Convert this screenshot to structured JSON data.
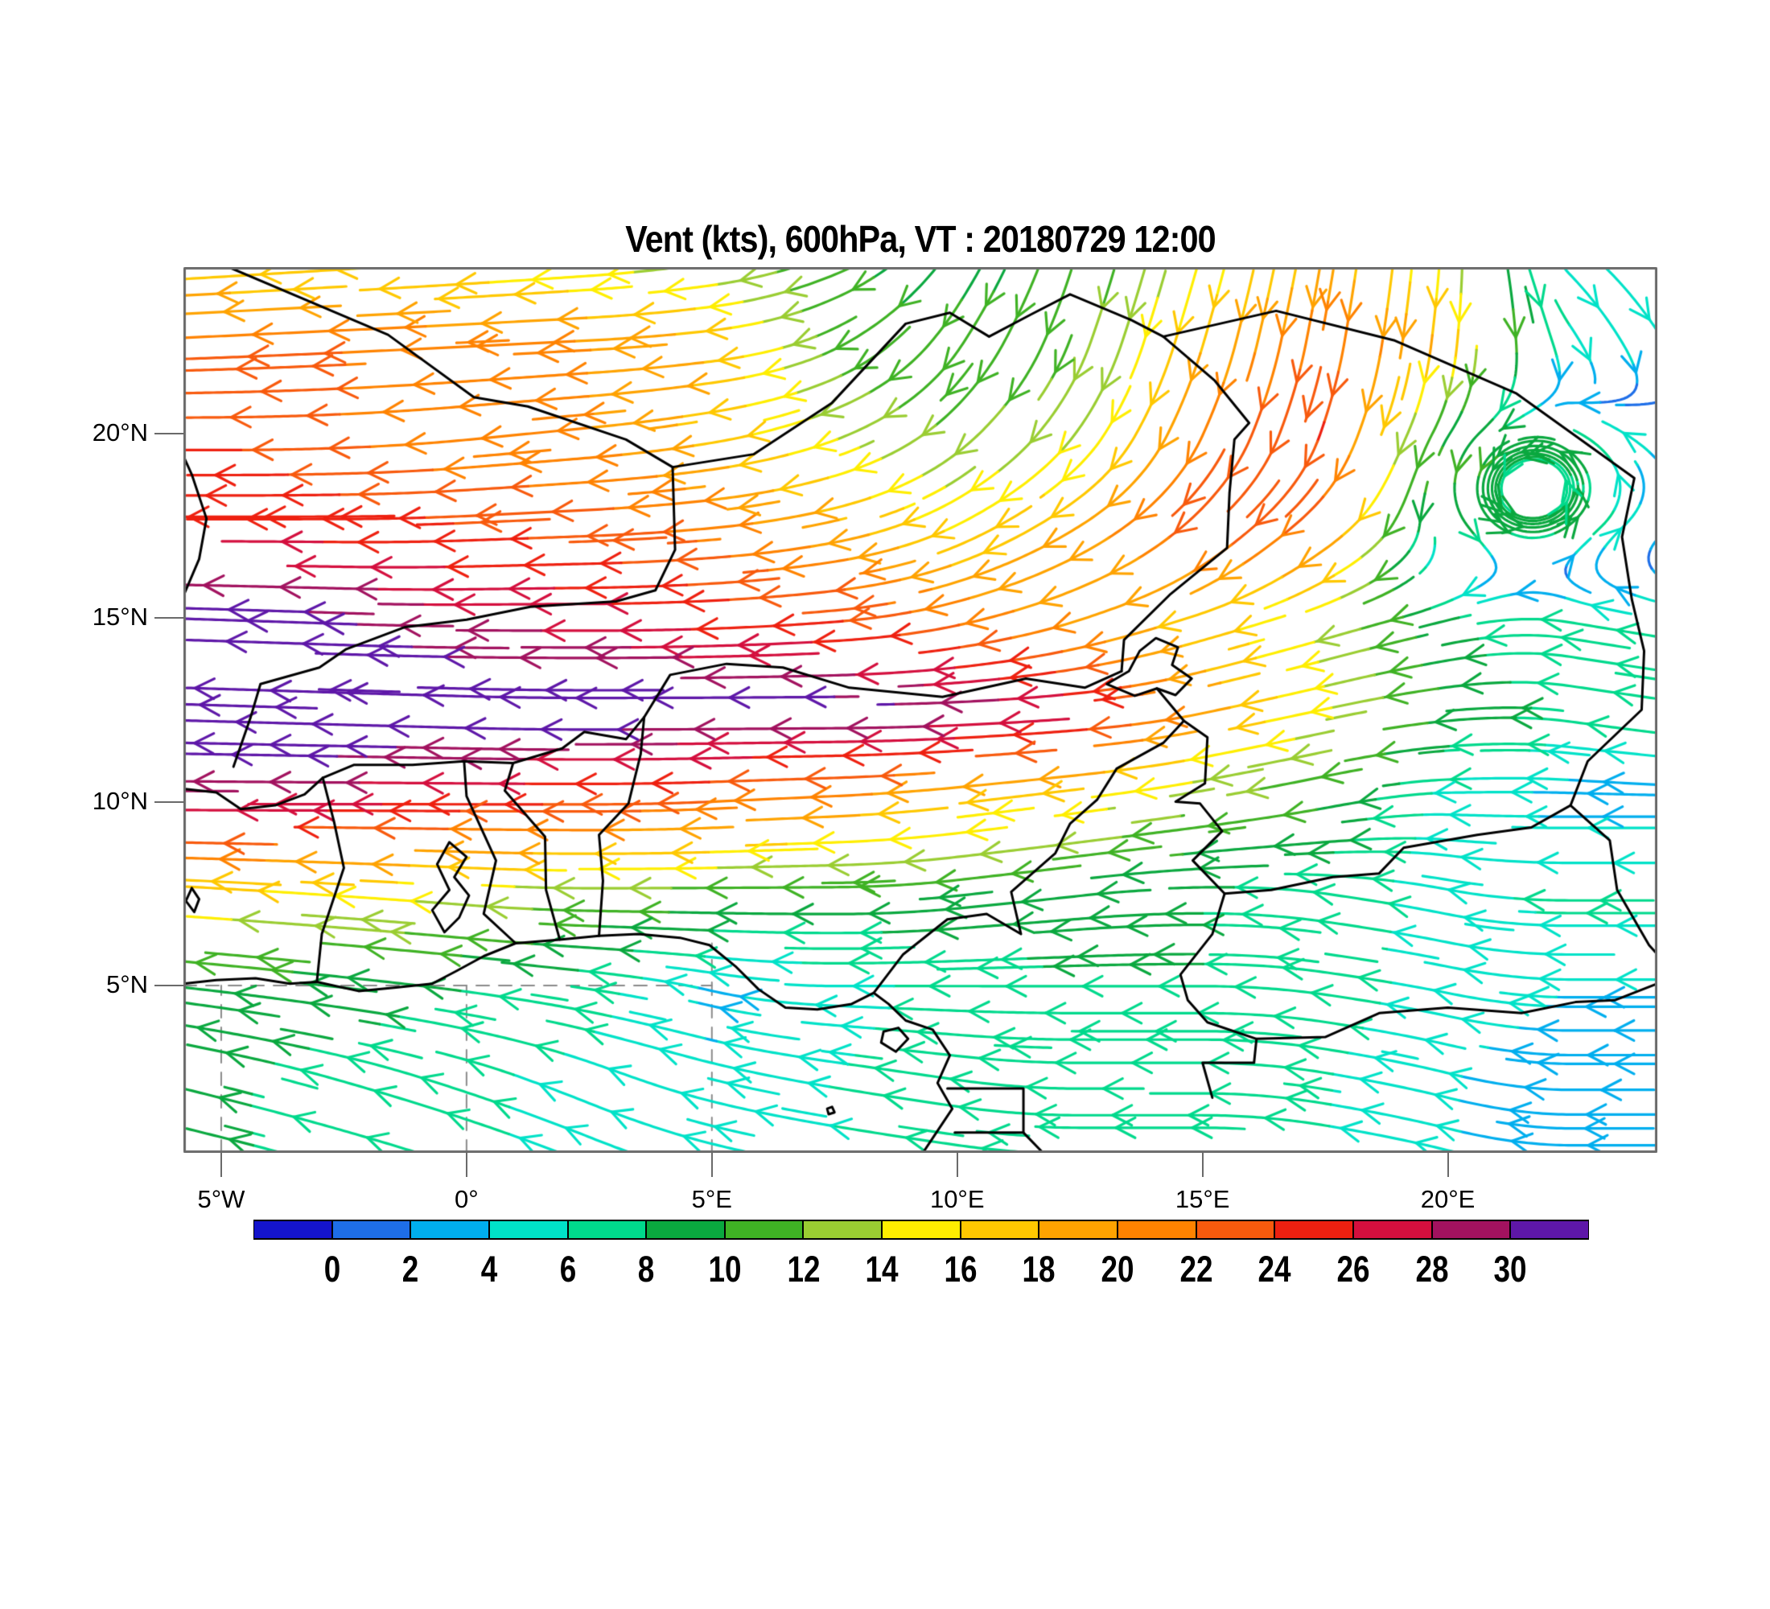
{
  "title": "Vent (kts), 600hPa, VT : 20180729  12:00",
  "map": {
    "lat_ticks": [
      {
        "label": "5°N",
        "lat": 5
      },
      {
        "label": "10°N",
        "lat": 10
      },
      {
        "label": "15°N",
        "lat": 15
      },
      {
        "label": "20°N",
        "lat": 20
      }
    ],
    "lon_ticks": [
      {
        "label": "5°W",
        "lon": -5
      },
      {
        "label": "0°",
        "lon": 0
      },
      {
        "label": "5°E",
        "lon": 5
      },
      {
        "label": "10°E",
        "lon": 10
      },
      {
        "label": "15°E",
        "lon": 15
      },
      {
        "label": "20°E",
        "lon": 20
      }
    ]
  },
  "colorbar": {
    "tick_labels": [
      "0",
      "2",
      "4",
      "6",
      "8",
      "10",
      "12",
      "14",
      "16",
      "18",
      "20",
      "22",
      "24",
      "26",
      "28",
      "30"
    ],
    "levels": [
      0,
      2,
      4,
      6,
      8,
      10,
      12,
      14,
      16,
      18,
      20,
      22,
      24,
      26,
      28,
      30
    ],
    "colors": [
      "#1414CC",
      "#1E6EE8",
      "#00AEEE",
      "#00E2C8",
      "#00D98C",
      "#0AA83F",
      "#3FB224",
      "#9ACD32",
      "#FFEE00",
      "#FFC800",
      "#FFA300",
      "#FF8300",
      "#F85A0D",
      "#EE2010",
      "#D40F3E",
      "#A2125F",
      "#5E17A8"
    ]
  },
  "chart_data": {
    "type": "streamline",
    "title": "Vent (kts), 600hPa, VT : 20180729  12:00",
    "variable": "wind",
    "units": "kts",
    "pressure_level": "600hPa",
    "valid_time": "20180729 12:00",
    "domain": {
      "lon_min": -5.77,
      "lon_max": 24.27,
      "lat_min": 0.45,
      "lat_max": 24.54
    },
    "grid": {
      "lons": [
        -5,
        -2.5,
        0,
        2.5,
        5,
        7.5,
        10,
        12.5,
        15,
        17.5,
        20,
        22.5
      ],
      "lats": [
        2.5,
        5,
        7.5,
        10,
        12.5,
        15,
        17.5,
        20,
        22.5,
        24.5
      ],
      "u": [
        [
          -8,
          -7,
          -6,
          -5,
          -4,
          -6,
          -7,
          -7,
          -6,
          -6,
          -4,
          -3
        ],
        [
          -9,
          -9,
          -8,
          -7,
          -3.5,
          -5,
          -7,
          -8,
          -8,
          -7,
          -5,
          -4
        ],
        [
          -16,
          -15,
          -14,
          -12,
          -11,
          -10,
          -9,
          -9,
          -8,
          -7,
          -5,
          -7
        ],
        [
          -28,
          -27,
          -25,
          -24,
          -22,
          -20,
          -17,
          -15,
          -12,
          -10,
          -5,
          -3
        ],
        [
          -33,
          -33,
          -32,
          -32,
          -31,
          -31,
          -30,
          -27,
          -19,
          -14,
          -10,
          -7
        ],
        [
          -31,
          -30,
          -28,
          -27,
          -25,
          -24,
          -21,
          -18,
          -16,
          -13,
          -8,
          -6
        ],
        [
          -26,
          -25,
          -24,
          -23,
          -21,
          -18,
          -14,
          -16,
          -18,
          -17,
          3,
          3
        ],
        [
          -24,
          -22,
          -20,
          -20,
          -17,
          -13,
          -9,
          -8,
          -9,
          -8,
          -4,
          -4
        ],
        [
          -22,
          -22,
          -21,
          -20,
          -18,
          -10,
          -6,
          -4,
          -5,
          -4,
          -2,
          3
        ],
        [
          -16,
          -16,
          -15,
          -14,
          -13,
          -10,
          -5,
          -3,
          -4,
          -3,
          -1,
          4
        ]
      ],
      "v": [
        [
          2,
          2,
          2,
          2,
          1,
          1,
          1,
          0,
          0,
          1,
          1,
          0
        ],
        [
          1,
          1,
          1,
          1,
          0.8,
          0,
          0,
          0,
          0,
          1,
          1,
          0
        ],
        [
          1,
          1,
          1,
          0,
          0,
          0,
          -1,
          -1,
          0,
          1,
          1,
          0
        ],
        [
          0,
          0,
          0,
          0,
          -1,
          -1,
          -2,
          -2,
          -2,
          -2,
          0,
          0
        ],
        [
          1,
          1,
          1,
          0,
          0,
          0,
          -1,
          -2,
          -4,
          -3,
          -1,
          1
        ],
        [
          1,
          1,
          0,
          0,
          -1,
          -2,
          -5,
          -6,
          -5,
          -4,
          -2,
          1
        ],
        [
          0,
          0,
          -1,
          -1,
          -2,
          -4,
          -7,
          -10,
          -16,
          -14,
          -5,
          2
        ],
        [
          0,
          -1,
          -2,
          -2,
          -3,
          -5,
          -8,
          -11,
          -20,
          -23,
          -7,
          2
        ],
        [
          -1,
          -1,
          -1,
          -1,
          -2,
          -5,
          -9,
          -11,
          -17,
          -22,
          -18,
          -5
        ],
        [
          -1,
          -1,
          -1,
          -1,
          -2,
          -4,
          -8,
          -10,
          -14,
          -18,
          -14,
          -4
        ]
      ]
    },
    "vortices": [
      {
        "lon": 21.7,
        "lat": 18.5,
        "strength": 14,
        "radius": 1.4,
        "sense": "cyclonic"
      }
    ],
    "graticule": [
      [
        [
          -5.77,
          5
        ],
        [
          5.0,
          5
        ]
      ],
      [
        [
          -5,
          0.45
        ],
        [
          -5,
          5
        ]
      ],
      [
        [
          0,
          0.45
        ],
        [
          0,
          5
        ]
      ],
      [
        [
          5,
          0.45
        ],
        [
          5,
          6.15
        ]
      ]
    ],
    "borders": [
      [
        [
          -5.77,
          5.05
        ],
        [
          -5.1,
          5.15
        ],
        [
          -4.3,
          5.2
        ],
        [
          -3.6,
          5.05
        ],
        [
          -3.05,
          5.1
        ],
        [
          -2.2,
          4.85
        ],
        [
          -1.4,
          4.95
        ],
        [
          -0.7,
          5.05
        ],
        [
          -0.2,
          5.4
        ],
        [
          0.35,
          5.8
        ],
        [
          1.0,
          6.15
        ],
        [
          1.9,
          6.25
        ],
        [
          2.7,
          6.35
        ],
        [
          3.5,
          6.4
        ],
        [
          4.35,
          6.3
        ],
        [
          4.95,
          6.1
        ],
        [
          5.5,
          5.5
        ],
        [
          5.95,
          4.9
        ],
        [
          6.5,
          4.4
        ],
        [
          7.15,
          4.35
        ],
        [
          7.85,
          4.5
        ],
        [
          8.3,
          4.8
        ],
        [
          8.6,
          4.5
        ],
        [
          8.95,
          4.05
        ],
        [
          9.5,
          3.8
        ],
        [
          9.85,
          3.1
        ],
        [
          9.6,
          2.35
        ],
        [
          9.9,
          1.65
        ],
        [
          9.55,
          0.95
        ],
        [
          9.3,
          0.45
        ]
      ],
      [
        [
          8.5,
          3.75
        ],
        [
          8.8,
          3.85
        ],
        [
          9.0,
          3.55
        ],
        [
          8.75,
          3.2
        ],
        [
          8.45,
          3.45
        ],
        [
          8.5,
          3.75
        ]
      ],
      [
        [
          7.35,
          1.65
        ],
        [
          7.45,
          1.7
        ],
        [
          7.5,
          1.55
        ],
        [
          7.38,
          1.5
        ],
        [
          7.35,
          1.65
        ]
      ],
      [
        [
          -3.05,
          5.1
        ],
        [
          -2.95,
          6.4
        ],
        [
          -2.5,
          8.2
        ],
        [
          -2.7,
          9.45
        ],
        [
          -2.93,
          10.65
        ]
      ],
      [
        [
          1.0,
          6.15
        ],
        [
          0.35,
          6.95
        ],
        [
          0.6,
          8.4
        ],
        [
          0.0,
          10.15
        ],
        [
          -0.05,
          11.1
        ]
      ],
      [
        [
          1.9,
          6.25
        ],
        [
          1.62,
          7.6
        ],
        [
          1.6,
          9.05
        ],
        [
          0.78,
          10.3
        ],
        [
          0.95,
          11.05
        ]
      ],
      [
        [
          2.7,
          6.35
        ],
        [
          2.78,
          7.85
        ],
        [
          2.7,
          9.1
        ],
        [
          3.3,
          9.95
        ],
        [
          3.55,
          11.3
        ],
        [
          3.62,
          12.3
        ]
      ],
      [
        [
          -5.77,
          10.35
        ],
        [
          -5.1,
          10.25
        ],
        [
          -4.6,
          9.8
        ],
        [
          -3.9,
          9.9
        ],
        [
          -3.3,
          10.2
        ],
        [
          -2.93,
          10.65
        ],
        [
          -2.3,
          11.0
        ],
        [
          -1.1,
          11.0
        ],
        [
          -0.05,
          11.1
        ],
        [
          0.95,
          11.05
        ],
        [
          1.95,
          11.45
        ],
        [
          2.4,
          11.9
        ],
        [
          3.25,
          11.7
        ],
        [
          3.62,
          12.3
        ],
        [
          4.15,
          13.45
        ],
        [
          5.3,
          13.75
        ],
        [
          6.45,
          13.65
        ],
        [
          7.8,
          13.1
        ],
        [
          9.7,
          12.85
        ],
        [
          11.4,
          13.35
        ],
        [
          12.6,
          13.1
        ],
        [
          13.35,
          13.55
        ]
      ],
      [
        [
          -5.77,
          15.6
        ],
        [
          -5.45,
          16.6
        ],
        [
          -5.3,
          17.7
        ],
        [
          -5.6,
          18.9
        ],
        [
          -5.77,
          19.4
        ]
      ],
      [
        [
          -4.75,
          10.95
        ],
        [
          -4.4,
          12.3
        ],
        [
          -4.2,
          13.2
        ],
        [
          -3.0,
          13.65
        ],
        [
          -2.45,
          14.15
        ],
        [
          -1.25,
          14.75
        ],
        [
          0.0,
          14.95
        ],
        [
          1.3,
          15.3
        ],
        [
          3.05,
          15.45
        ],
        [
          3.85,
          15.75
        ],
        [
          4.25,
          16.85
        ],
        [
          4.2,
          19.1
        ]
      ],
      [
        [
          -4.85,
          24.54
        ],
        [
          -1.6,
          22.7
        ],
        [
          0.15,
          21.0
        ],
        [
          1.25,
          20.75
        ],
        [
          3.25,
          19.85
        ],
        [
          4.2,
          19.1
        ],
        [
          5.85,
          19.45
        ],
        [
          7.45,
          20.85
        ],
        [
          8.95,
          23.0
        ],
        [
          9.85,
          23.3
        ],
        [
          10.65,
          22.65
        ],
        [
          11.5,
          23.25
        ],
        [
          12.3,
          23.8
        ],
        [
          13.55,
          23.1
        ],
        [
          14.2,
          22.65
        ],
        [
          15.25,
          21.45
        ],
        [
          15.95,
          20.3
        ],
        [
          15.65,
          19.85
        ],
        [
          15.55,
          18.4
        ],
        [
          15.5,
          16.9
        ],
        [
          14.35,
          15.65
        ],
        [
          13.4,
          14.4
        ],
        [
          13.35,
          13.55
        ]
      ],
      [
        [
          14.2,
          22.65
        ],
        [
          16.5,
          23.35
        ],
        [
          18.9,
          22.55
        ],
        [
          21.4,
          21.1
        ],
        [
          23.8,
          18.8
        ],
        [
          23.55,
          17.2
        ],
        [
          23.75,
          15.5
        ],
        [
          24.0,
          14.1
        ],
        [
          23.95,
          12.5
        ],
        [
          22.85,
          11.1
        ],
        [
          22.5,
          9.9
        ],
        [
          23.3,
          8.95
        ],
        [
          23.45,
          7.6
        ],
        [
          24.1,
          6.1
        ],
        [
          24.27,
          5.85
        ]
      ],
      [
        [
          8.3,
          4.8
        ],
        [
          8.9,
          5.85
        ],
        [
          9.8,
          6.8
        ],
        [
          10.6,
          6.95
        ],
        [
          11.3,
          6.4
        ],
        [
          11.1,
          7.55
        ],
        [
          12.0,
          8.6
        ],
        [
          12.3,
          9.4
        ],
        [
          12.85,
          10.05
        ],
        [
          13.25,
          10.9
        ],
        [
          14.2,
          11.6
        ],
        [
          14.62,
          12.2
        ],
        [
          14.07,
          13.08
        ]
      ],
      [
        [
          13.05,
          13.2
        ],
        [
          13.5,
          13.55
        ],
        [
          13.72,
          14.1
        ],
        [
          14.05,
          14.45
        ],
        [
          14.5,
          14.2
        ],
        [
          14.38,
          13.72
        ],
        [
          14.78,
          13.35
        ],
        [
          14.45,
          12.9
        ],
        [
          14.07,
          13.08
        ],
        [
          13.62,
          12.88
        ],
        [
          13.05,
          13.2
        ]
      ],
      [
        [
          14.62,
          12.2
        ],
        [
          15.1,
          11.75
        ],
        [
          15.05,
          10.5
        ],
        [
          14.45,
          10.0
        ],
        [
          14.95,
          9.95
        ],
        [
          15.4,
          9.2
        ],
        [
          14.8,
          8.4
        ],
        [
          15.45,
          7.5
        ],
        [
          16.4,
          7.6
        ],
        [
          17.65,
          7.95
        ],
        [
          18.6,
          8.05
        ],
        [
          19.1,
          8.75
        ],
        [
          20.6,
          9.1
        ],
        [
          21.7,
          9.3
        ],
        [
          22.5,
          9.9
        ]
      ],
      [
        [
          15.45,
          7.5
        ],
        [
          15.2,
          6.4
        ],
        [
          14.55,
          5.3
        ],
        [
          14.7,
          4.6
        ],
        [
          15.1,
          4.0
        ],
        [
          16.1,
          3.55
        ],
        [
          16.05,
          2.9
        ],
        [
          15.0,
          2.9
        ],
        [
          15.2,
          1.95
        ]
      ],
      [
        [
          16.1,
          3.55
        ],
        [
          17.5,
          3.6
        ],
        [
          18.6,
          4.25
        ],
        [
          20.0,
          4.4
        ],
        [
          21.5,
          4.25
        ],
        [
          22.6,
          4.55
        ],
        [
          23.4,
          4.6
        ],
        [
          24.27,
          5.05
        ]
      ],
      [
        [
          9.8,
          2.2
        ],
        [
          11.35,
          2.2
        ],
        [
          11.35,
          1.0
        ],
        [
          9.95,
          1.0
        ]
      ],
      [
        [
          11.35,
          1.0
        ],
        [
          11.75,
          0.45
        ]
      ],
      [
        [
          -0.45,
          6.45
        ],
        [
          -0.15,
          6.85
        ],
        [
          0.05,
          7.45
        ],
        [
          -0.25,
          7.95
        ],
        [
          0.0,
          8.5
        ],
        [
          -0.35,
          8.9
        ],
        [
          -0.6,
          8.3
        ],
        [
          -0.35,
          7.6
        ],
        [
          -0.7,
          7.05
        ],
        [
          -0.45,
          6.45
        ]
      ],
      [
        [
          -5.6,
          7.65
        ],
        [
          -5.45,
          7.35
        ],
        [
          -5.55,
          7.0
        ],
        [
          -5.72,
          7.3
        ],
        [
          -5.6,
          7.65
        ]
      ]
    ]
  }
}
